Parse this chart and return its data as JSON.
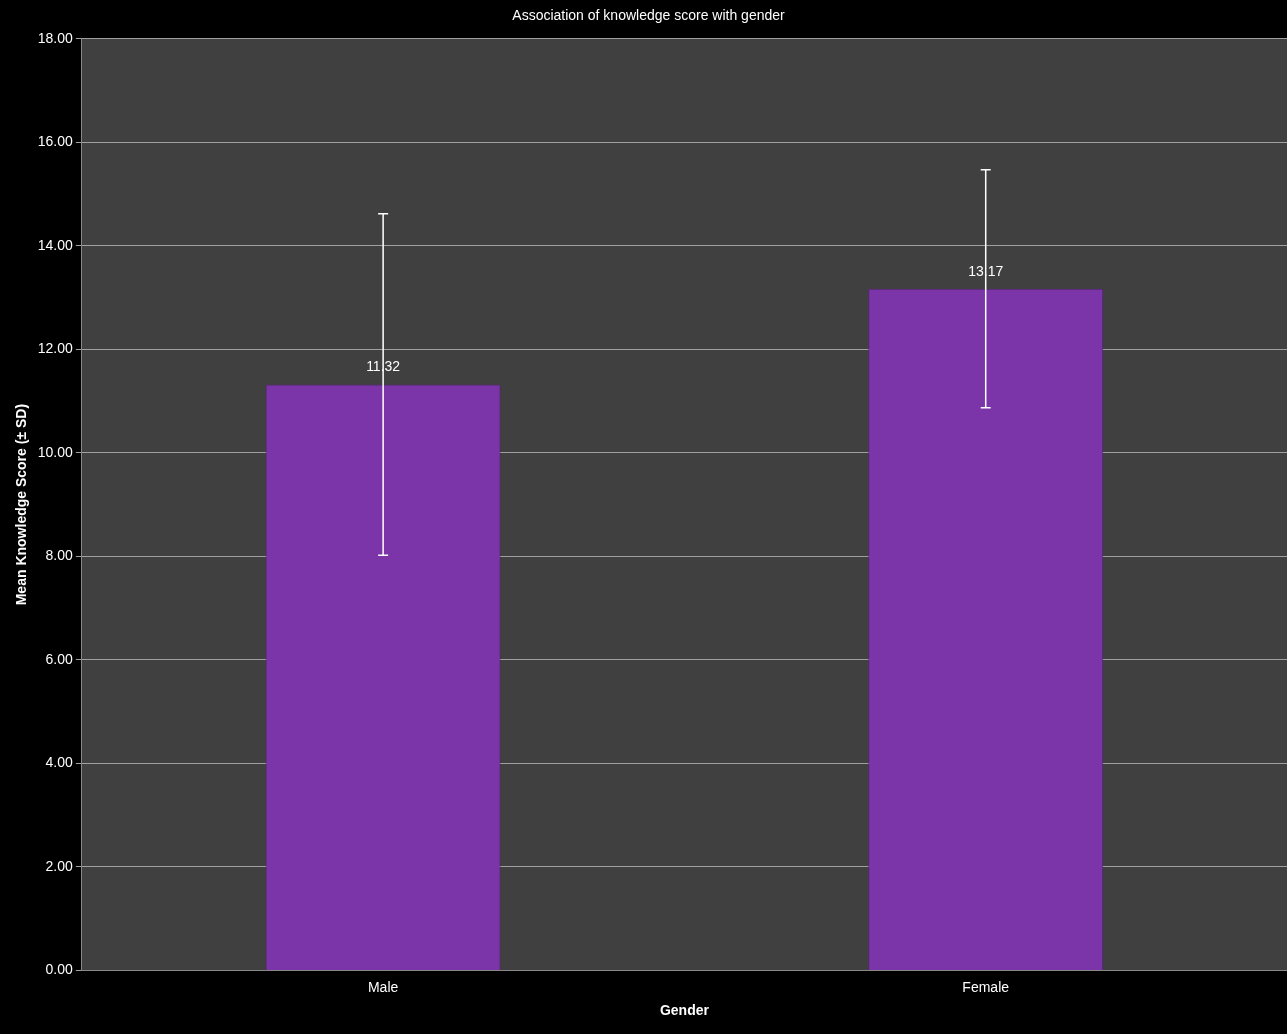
{
  "chart_data": {
    "type": "bar",
    "title": "Association of knowledge score with gender",
    "xlabel": "Gender",
    "ylabel": "Mean Knowledge Score (± SD)",
    "categories": [
      "Male",
      "Female"
    ],
    "values": [
      11.32,
      13.17
    ],
    "errors": [
      3.3,
      2.3
    ],
    "color": "#7b35a8",
    "ylim": [
      0,
      18
    ],
    "yticks": [
      {
        "value": 0,
        "label": "0.00"
      },
      {
        "value": 2,
        "label": "2.00"
      },
      {
        "value": 4,
        "label": "4.00"
      },
      {
        "value": 6,
        "label": "6.00"
      },
      {
        "value": 8,
        "label": "8.00"
      },
      {
        "value": 10,
        "label": "10.00"
      },
      {
        "value": 12,
        "label": "12.00"
      },
      {
        "value": 14,
        "label": "14.00"
      },
      {
        "value": 16,
        "label": "16.00"
      },
      {
        "value": 18,
        "label": "18.00"
      }
    ],
    "grid": "y",
    "data_labels": true,
    "legend": false
  }
}
